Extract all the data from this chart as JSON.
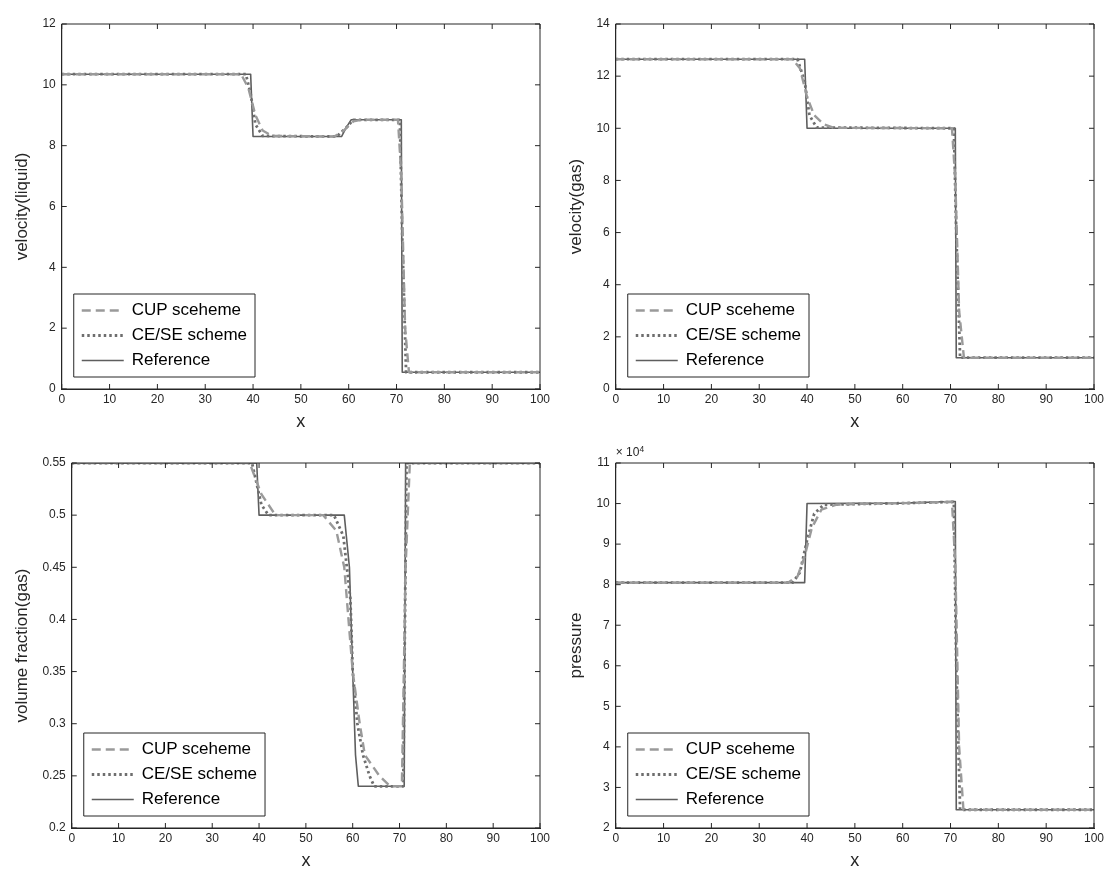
{
  "chart_data": [
    {
      "type": "line",
      "xlabel": "x",
      "ylabel": "velocity(liquid)",
      "xlim": [
        0,
        100
      ],
      "xticks": [
        0,
        10,
        20,
        30,
        40,
        50,
        60,
        70,
        80,
        90,
        100
      ],
      "ylim": [
        0,
        12
      ],
      "yticks": [
        0,
        2,
        4,
        6,
        8,
        10,
        12
      ],
      "grid": false,
      "legend": "bottom left",
      "series": [
        {
          "name": "CUP sceheme",
          "color": "#9a9a9a",
          "line_style": "dashed",
          "x": [
            0,
            37.5,
            39,
            40.5,
            42,
            44,
            57,
            59,
            61,
            62.5,
            70.3,
            71,
            71.8,
            72.6,
            100
          ],
          "values": [
            10.35,
            10.35,
            9.9,
            9,
            8.5,
            8.32,
            8.3,
            8.5,
            8.8,
            8.85,
            8.85,
            7,
            2,
            0.55,
            0.55
          ]
        },
        {
          "name": "CE/SE scheme",
          "color": "#6e6e6e",
          "line_style": "dotted",
          "x": [
            0,
            38.5,
            39.5,
            40.5,
            42,
            57.5,
            59.5,
            61,
            70.7,
            71.2,
            72,
            100
          ],
          "values": [
            10.35,
            10.35,
            9.7,
            8.7,
            8.32,
            8.3,
            8.6,
            8.85,
            8.85,
            5,
            0.55,
            0.55
          ]
        },
        {
          "name": "Reference",
          "color": "#5e5e5e",
          "line_style": "solid",
          "x": [
            0,
            39.5,
            40,
            58.5,
            59.5,
            60.5,
            71,
            71.2,
            100
          ],
          "values": [
            10.35,
            10.35,
            8.3,
            8.3,
            8.6,
            8.85,
            8.85,
            0.55,
            0.55
          ]
        }
      ]
    },
    {
      "type": "line",
      "xlabel": "x",
      "ylabel": "velocity(gas)",
      "xlim": [
        0,
        100
      ],
      "xticks": [
        0,
        10,
        20,
        30,
        40,
        50,
        60,
        70,
        80,
        90,
        100
      ],
      "ylim": [
        0,
        14
      ],
      "yticks": [
        0,
        2,
        4,
        6,
        8,
        10,
        12,
        14
      ],
      "grid": false,
      "legend": "bottom left",
      "series": [
        {
          "name": "CUP sceheme",
          "color": "#9a9a9a",
          "line_style": "dashed",
          "x": [
            0,
            37,
            38.5,
            40,
            41.5,
            43.5,
            45.5,
            70.3,
            71,
            71.8,
            72.8,
            100
          ],
          "values": [
            12.65,
            12.65,
            12.3,
            11.2,
            10.5,
            10.15,
            10.02,
            10,
            8,
            3,
            1.2,
            1.2
          ]
        },
        {
          "name": "CE/SE scheme",
          "color": "#6e6e6e",
          "line_style": "dotted",
          "x": [
            0,
            38,
            39.5,
            40.5,
            42,
            70.7,
            71.2,
            72,
            100
          ],
          "values": [
            12.65,
            12.65,
            11.8,
            10.5,
            10.03,
            10,
            6,
            1.2,
            1.2
          ]
        },
        {
          "name": "Reference",
          "color": "#5e5e5e",
          "line_style": "solid",
          "x": [
            0,
            39.5,
            40,
            71,
            71.2,
            100
          ],
          "values": [
            12.65,
            12.65,
            10,
            10,
            1.2,
            1.2
          ]
        }
      ]
    },
    {
      "type": "line",
      "xlabel": "x",
      "ylabel": "volume fraction(gas)",
      "xlim": [
        0,
        100
      ],
      "xticks": [
        0,
        10,
        20,
        30,
        40,
        50,
        60,
        70,
        80,
        90,
        100
      ],
      "ylim": [
        0.2,
        0.55
      ],
      "yticks": [
        0.2,
        0.25,
        0.3,
        0.35,
        0.4,
        0.45,
        0.5,
        0.55
      ],
      "grid": false,
      "legend": "bottom left",
      "series": [
        {
          "name": "CUP sceheme",
          "color": "#9a9a9a",
          "line_style": "dashed",
          "x": [
            0,
            38,
            40.5,
            43.5,
            53.7,
            56.5,
            58.2,
            60,
            61.5,
            62.6,
            65.7,
            68,
            70.5,
            71.3,
            72.2,
            100
          ],
          "values": [
            0.55,
            0.55,
            0.52,
            0.5,
            0.5,
            0.485,
            0.45,
            0.35,
            0.3,
            0.27,
            0.25,
            0.24,
            0.24,
            0.45,
            0.55,
            0.55
          ]
        },
        {
          "name": "CE/SE scheme",
          "color": "#6e6e6e",
          "line_style": "dotted",
          "x": [
            0,
            38.5,
            40.5,
            42,
            56,
            58,
            59.5,
            60,
            61,
            62.2,
            63.6,
            64.6,
            70.8,
            71.5,
            100
          ],
          "values": [
            0.55,
            0.55,
            0.51,
            0.5,
            0.5,
            0.48,
            0.42,
            0.35,
            0.3,
            0.27,
            0.25,
            0.24,
            0.24,
            0.55,
            0.55
          ]
        },
        {
          "name": "Reference",
          "color": "#5e5e5e",
          "line_style": "solid",
          "x": [
            0,
            39.5,
            40,
            58.2,
            59.3,
            60,
            60.6,
            61.2,
            71,
            71.3,
            100
          ],
          "values": [
            0.55,
            0.55,
            0.5,
            0.5,
            0.45,
            0.35,
            0.27,
            0.24,
            0.24,
            0.55,
            0.55
          ]
        }
      ]
    },
    {
      "type": "line",
      "xlabel": "x",
      "ylabel": "pressure",
      "annotations": [
        "× 10$^{4}$"
      ],
      "xlim": [
        0,
        100
      ],
      "xticks": [
        0,
        10,
        20,
        30,
        40,
        50,
        60,
        70,
        80,
        90,
        100
      ],
      "ylim": [
        2,
        11
      ],
      "yticks": [
        2,
        3,
        4,
        5,
        6,
        7,
        8,
        9,
        10,
        11
      ],
      "grid": false,
      "legend": "bottom left",
      "series": [
        {
          "name": "CUP sceheme",
          "color": "#9a9a9a",
          "line_style": "dashed",
          "x": [
            0,
            36,
            38,
            39.5,
            41,
            43,
            46,
            50,
            60,
            70.3,
            71,
            71.8,
            72.7,
            100
          ],
          "values": [
            8.05,
            8.05,
            8.2,
            8.7,
            9.4,
            9.85,
            9.97,
            9.99,
            10.01,
            10.04,
            8.5,
            4,
            2.45,
            2.45
          ]
        },
        {
          "name": "CE/SE scheme",
          "color": "#6e6e6e",
          "line_style": "dotted",
          "x": [
            0,
            37,
            38.5,
            40,
            41.5,
            43.5,
            60,
            70.7,
            71.2,
            72,
            100
          ],
          "values": [
            8.05,
            8.05,
            8.3,
            9.1,
            9.75,
            9.97,
            10.01,
            10.04,
            6,
            2.45,
            2.45
          ]
        },
        {
          "name": "Reference",
          "color": "#5e5e5e",
          "line_style": "solid",
          "x": [
            0,
            39.5,
            40,
            60,
            70,
            71,
            71.2,
            100
          ],
          "values": [
            8.05,
            8.05,
            10,
            10.01,
            10.05,
            10.05,
            2.45,
            2.45
          ]
        }
      ]
    }
  ]
}
